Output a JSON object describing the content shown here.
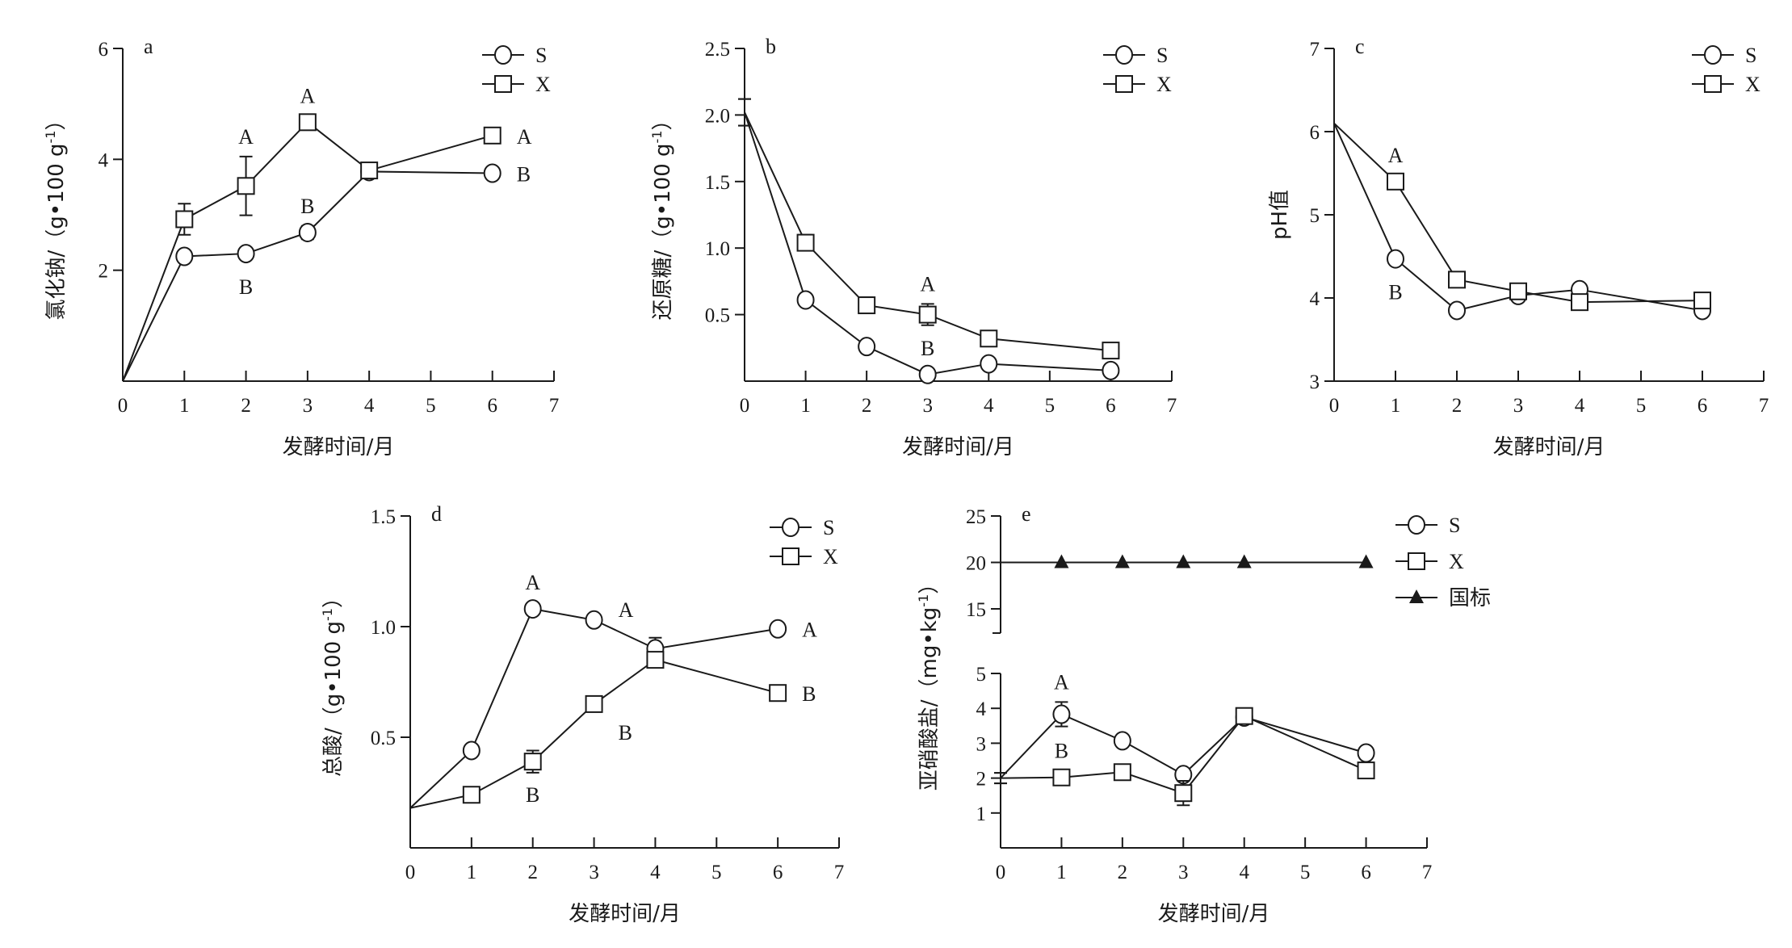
{
  "chart_data": [
    {
      "id": "a",
      "type": "line",
      "panel_label": "a",
      "xlabel": "发酵时间/月",
      "ylabel": "氯化钠/（g•100 g",
      "ylabel_sup": "-1",
      "ylabel_end": "）",
      "xlim": [
        0,
        7
      ],
      "xticks": [
        0,
        1,
        2,
        3,
        4,
        5,
        6,
        7
      ],
      "ylim": [
        0,
        6
      ],
      "yticks": [
        2,
        4,
        6
      ],
      "x": [
        0,
        1,
        2,
        3,
        4,
        6
      ],
      "series": [
        {
          "name": "S",
          "marker": "circle",
          "values": [
            0,
            2.25,
            2.3,
            2.68,
            3.78,
            3.75
          ],
          "err": [
            0,
            0,
            0,
            0.12,
            0,
            0
          ]
        },
        {
          "name": "X",
          "marker": "square",
          "values": [
            0,
            2.92,
            3.52,
            4.67,
            3.8,
            4.43
          ],
          "err": [
            0,
            0.28,
            0.53,
            0.05,
            0.1,
            0
          ]
        }
      ],
      "annotations": [
        {
          "text": "A",
          "series": "X",
          "x": 2,
          "pos": "above-err"
        },
        {
          "text": "B",
          "series": "S",
          "x": 2,
          "pos": "below"
        },
        {
          "text": "A",
          "series": "X",
          "x": 3,
          "pos": "above"
        },
        {
          "text": "B",
          "series": "S",
          "x": 3,
          "pos": "above"
        },
        {
          "text": "A",
          "series": "X",
          "x": 6,
          "pos": "right"
        },
        {
          "text": "B",
          "series": "S",
          "x": 6,
          "pos": "right"
        }
      ],
      "legend": [
        "S",
        "X"
      ],
      "legend_position": "top-right"
    },
    {
      "id": "b",
      "type": "line",
      "panel_label": "b",
      "xlabel": "发酵时间/月",
      "ylabel": "还原糖/（g•100 g",
      "ylabel_sup": "-1",
      "ylabel_end": "）",
      "xlim": [
        0,
        7
      ],
      "xticks": [
        0,
        1,
        2,
        3,
        4,
        5,
        6,
        7
      ],
      "ylim": [
        0,
        2.5
      ],
      "yticks": [
        0.5,
        1.0,
        1.5,
        2.0,
        2.5
      ],
      "x": [
        0,
        1,
        2,
        3,
        4,
        6
      ],
      "series": [
        {
          "name": "S",
          "marker": "circle",
          "values": [
            2.02,
            0.61,
            0.26,
            0.05,
            0.13,
            0.08
          ],
          "err": [
            0.1,
            0,
            0,
            0,
            0,
            0
          ]
        },
        {
          "name": "X",
          "marker": "square",
          "values": [
            2.02,
            1.04,
            0.57,
            0.5,
            0.32,
            0.23
          ],
          "err": [
            0.1,
            0.06,
            0.06,
            0.08,
            0,
            0
          ]
        }
      ],
      "annotations": [
        {
          "text": "A",
          "series": "X",
          "x": 3,
          "pos": "above-err"
        },
        {
          "text": "B",
          "series": "S",
          "x": 3,
          "pos": "above"
        }
      ],
      "legend": [
        "S",
        "X"
      ],
      "legend_position": "top-right"
    },
    {
      "id": "c",
      "type": "line",
      "panel_label": "c",
      "xlabel": "发酵时间/月",
      "ylabel": "pH值",
      "ylabel_sup": "",
      "ylabel_end": "",
      "xlim": [
        0,
        7
      ],
      "xticks": [
        0,
        1,
        2,
        3,
        4,
        5,
        6,
        7
      ],
      "ylim": [
        3,
        7
      ],
      "yticks": [
        3,
        4,
        5,
        6,
        7
      ],
      "x": [
        0,
        1,
        2,
        3,
        4,
        6
      ],
      "series": [
        {
          "name": "S",
          "marker": "circle",
          "values": [
            6.1,
            4.47,
            3.85,
            4.03,
            4.1,
            3.85
          ],
          "err": [
            0,
            0,
            0,
            0,
            0,
            0
          ]
        },
        {
          "name": "X",
          "marker": "square",
          "values": [
            6.1,
            5.4,
            4.22,
            4.08,
            3.95,
            3.97
          ],
          "err": [
            0,
            0,
            0,
            0,
            0,
            0
          ]
        }
      ],
      "annotations": [
        {
          "text": "A",
          "series": "X",
          "x": 1,
          "pos": "above"
        },
        {
          "text": "B",
          "series": "S",
          "x": 1,
          "pos": "below"
        }
      ],
      "legend": [
        "S",
        "X"
      ],
      "legend_position": "top-right"
    },
    {
      "id": "d",
      "type": "line",
      "panel_label": "d",
      "xlabel": "发酵时间/月",
      "ylabel": "总酸/（g•100 g",
      "ylabel_sup": "-1",
      "ylabel_end": "）",
      "xlim": [
        0,
        7
      ],
      "xticks": [
        0,
        1,
        2,
        3,
        4,
        5,
        6,
        7
      ],
      "ylim": [
        0,
        1.5
      ],
      "yticks": [
        0.5,
        1.0,
        1.5
      ],
      "x": [
        0,
        1,
        2,
        3,
        4,
        6
      ],
      "series": [
        {
          "name": "S",
          "marker": "circle",
          "values": [
            0.18,
            0.44,
            1.08,
            1.03,
            0.9,
            0.99
          ],
          "err": [
            0,
            0,
            0,
            0,
            0.05,
            0
          ]
        },
        {
          "name": "X",
          "marker": "square",
          "values": [
            0.18,
            0.24,
            0.39,
            0.65,
            0.85,
            0.7
          ],
          "err": [
            0,
            0,
            0.05,
            0,
            0.03,
            0
          ]
        }
      ],
      "annotations": [
        {
          "text": "A",
          "series": "S",
          "x": 2,
          "pos": "above"
        },
        {
          "text": "A",
          "series": "S",
          "x": 3,
          "pos": "upper-right"
        },
        {
          "text": "A",
          "series": "S",
          "x": 6,
          "pos": "right"
        },
        {
          "text": "B",
          "series": "X",
          "x": 2,
          "pos": "below"
        },
        {
          "text": "B",
          "series": "X",
          "x": 3,
          "pos": "lower-right"
        },
        {
          "text": "B",
          "series": "X",
          "x": 6,
          "pos": "right"
        }
      ],
      "legend": [
        "S",
        "X"
      ],
      "legend_position": "top-right"
    },
    {
      "id": "e",
      "type": "line",
      "panel_label": "e",
      "xlabel": "发酵时间/月",
      "ylabel": "亚硝酸盐/（mg•kg",
      "ylabel_sup": "-1",
      "ylabel_end": "）",
      "xlim": [
        0,
        7
      ],
      "xticks": [
        0,
        1,
        2,
        3,
        4,
        5,
        6,
        7
      ],
      "ylim": [
        0,
        5
      ],
      "yticks": [
        1,
        2,
        3,
        4,
        5
      ],
      "ylim_upper": [
        13,
        25
      ],
      "yticks_upper": [
        15,
        20,
        25
      ],
      "axis_break": true,
      "x": [
        0,
        1,
        2,
        3,
        4,
        6
      ],
      "series": [
        {
          "name": "S",
          "marker": "circle",
          "values": [
            2.0,
            3.83,
            3.07,
            2.1,
            3.75,
            2.72
          ],
          "err": [
            0.15,
            0.35,
            0.15,
            0.1,
            0,
            0
          ]
        },
        {
          "name": "X",
          "marker": "square",
          "values": [
            2.0,
            2.02,
            2.17,
            1.57,
            3.78,
            2.22
          ],
          "err": [
            0.15,
            0.15,
            0,
            0.35,
            0.05,
            0
          ]
        },
        {
          "name": "国标",
          "marker": "triangle",
          "upper": true,
          "line_x": [
            0,
            6
          ],
          "x": [
            1,
            2,
            3,
            4,
            6
          ],
          "values": [
            20,
            20,
            20,
            20,
            20
          ]
        }
      ],
      "annotations": [
        {
          "text": "A",
          "series": "S",
          "x": 1,
          "pos": "above-err"
        },
        {
          "text": "B",
          "series": "X",
          "x": 1,
          "pos": "above"
        }
      ],
      "legend": [
        "S",
        "X",
        "国标"
      ],
      "legend_position": "top-right"
    }
  ]
}
